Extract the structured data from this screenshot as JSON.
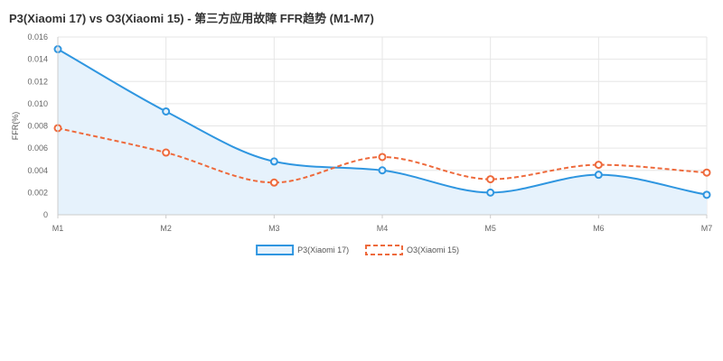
{
  "chart_data": {
    "type": "line",
    "title": "P3(Xiaomi 17) vs O3(Xiaomi 15) - 第三方应用故障 FFR趋势 (M1-M7)",
    "xlabel": "",
    "ylabel": "FFR(%)",
    "categories": [
      "M1",
      "M2",
      "M3",
      "M4",
      "M5",
      "M6",
      "M7"
    ],
    "ylim": [
      0,
      0.016
    ],
    "yticks": [
      "0",
      "0.002",
      "0.004",
      "0.006",
      "0.008",
      "0.010",
      "0.012",
      "0.014",
      "0.016"
    ],
    "grid": true,
    "legend_position": "bottom",
    "series": [
      {
        "name": "P3(Xiaomi 17)",
        "values": [
          0.0149,
          0.0093,
          0.0048,
          0.004,
          0.002,
          0.0036,
          0.0018
        ],
        "color": "#2f96e0",
        "fill": "#e6f2fc",
        "style": "solid"
      },
      {
        "name": "O3(Xiaomi 15)",
        "values": [
          0.0078,
          0.0056,
          0.0029,
          0.0052,
          0.0032,
          0.0045,
          0.0038
        ],
        "color": "#ee6a3c",
        "style": "dashed"
      }
    ]
  }
}
